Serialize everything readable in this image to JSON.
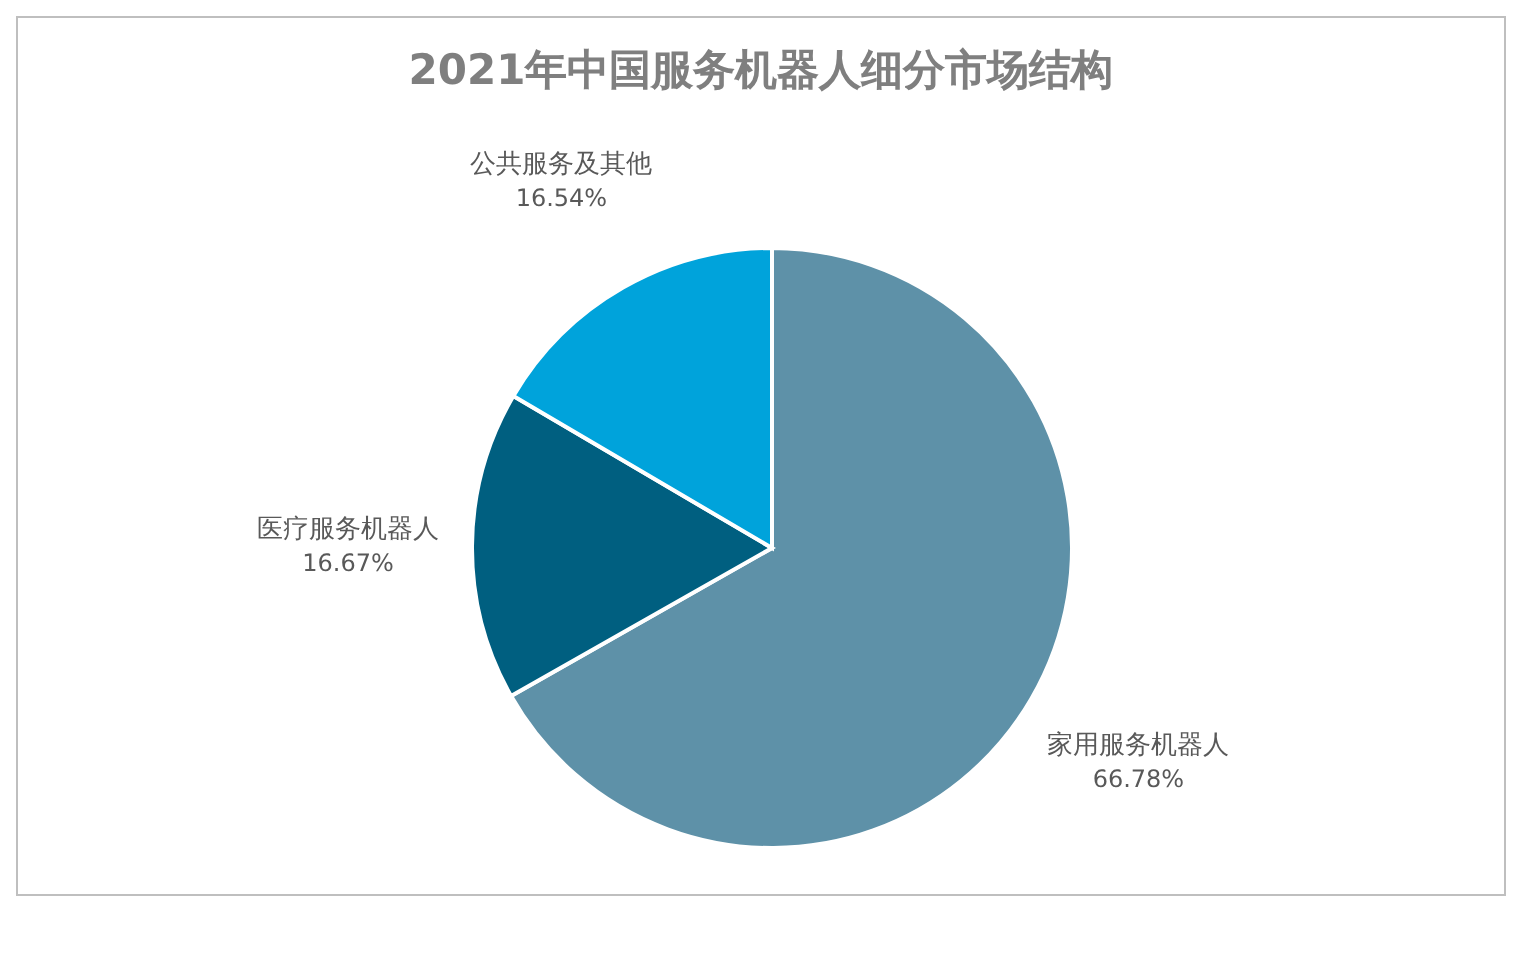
{
  "chart_data": {
    "type": "pie",
    "title": "2021年中国服务机器人细分市场结构",
    "categories": [
      "家用服务机器人",
      "医疗服务机器人",
      "公共服务及其他"
    ],
    "values": [
      66.78,
      16.67,
      16.54
    ],
    "value_labels": [
      "66.78%",
      "16.67%",
      "16.54%"
    ],
    "colors": [
      "#5e91a8",
      "#005f80",
      "#00a3db"
    ],
    "legend": false
  }
}
